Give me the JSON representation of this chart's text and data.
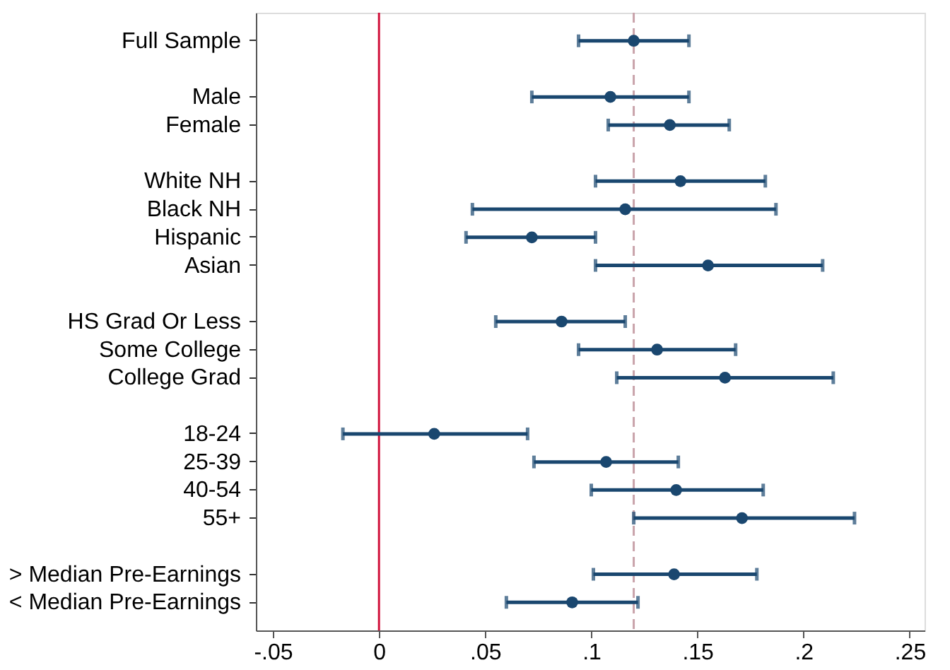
{
  "chart_data": {
    "type": "scatter",
    "orientation": "horizontal",
    "marker": "circle",
    "categories": [
      "Full Sample",
      null,
      "Male",
      "Female",
      null,
      "White NH",
      "Black NH",
      "Hispanic",
      "Asian",
      null,
      "HS Grad Or Less",
      "Some College",
      "College Grad",
      null,
      "18-24",
      "25-39",
      "40-54",
      "55+",
      null,
      "> Median Pre-Earnings",
      "< Median Pre-Earnings"
    ],
    "series": [
      {
        "color": "#1a476f",
        "values": [
          0.12,
          null,
          0.109,
          0.137,
          null,
          0.142,
          0.116,
          0.072,
          0.155,
          null,
          0.086,
          0.131,
          0.163,
          null,
          0.026,
          0.107,
          0.14,
          0.171,
          null,
          0.139,
          0.091
        ],
        "errors": [
          [
            0.094,
            0.146
          ],
          null,
          [
            0.072,
            0.146
          ],
          [
            0.108,
            0.165
          ],
          null,
          [
            0.102,
            0.182
          ],
          [
            0.044,
            0.187
          ],
          [
            0.041,
            0.102
          ],
          [
            0.102,
            0.209
          ],
          null,
          [
            0.055,
            0.116
          ],
          [
            0.094,
            0.168
          ],
          [
            0.112,
            0.214
          ],
          null,
          [
            -0.017,
            0.07
          ],
          [
            0.073,
            0.141
          ],
          [
            0.1,
            0.181
          ],
          [
            0.12,
            0.224
          ],
          null,
          [
            0.101,
            0.178
          ],
          [
            0.06,
            0.122
          ]
        ]
      }
    ],
    "xlim": [
      -0.058,
      0.257
    ],
    "xticks": [
      {
        "value": -0.05,
        "label": "-.05"
      },
      0,
      {
        "value": 0.05,
        "label": ".05"
      },
      {
        "value": 0.1,
        "label": ".1"
      },
      {
        "value": 0.15,
        "label": ".15"
      },
      {
        "value": 0.2,
        "label": ".2"
      },
      {
        "value": 0.25,
        "label": ".25"
      }
    ],
    "ref_lines": [
      {
        "axis": "x",
        "value": 0,
        "color": "#d0103a",
        "line_style": "solid"
      },
      {
        "axis": "x",
        "value": 0.12,
        "color": "#c9a3ab",
        "line_style": "dashed"
      }
    ],
    "grid": false
  }
}
